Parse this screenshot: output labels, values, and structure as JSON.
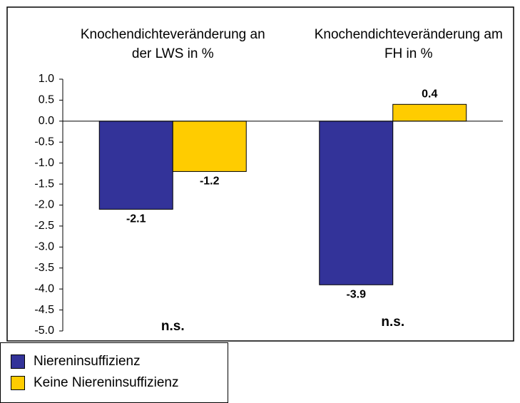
{
  "chart_data": {
    "type": "bar",
    "categories": [
      "Knochendichteveränderung an der LWS in %",
      "Knochendichteveränderung am FH in %"
    ],
    "series": [
      {
        "name": "Niereninsuffizienz",
        "color": "#333399",
        "values": [
          -2.1,
          -3.9
        ]
      },
      {
        "name": "Keine Niereninsuffizienz",
        "color": "#ffcc00",
        "values": [
          -1.2,
          0.4
        ]
      }
    ],
    "annotations": [
      "n.s.",
      "n.s."
    ],
    "ylim": [
      -5.0,
      1.0
    ],
    "yticks": [
      {
        "value": 1.0,
        "label": "1.0"
      },
      {
        "value": 0.5,
        "label": "0.5"
      },
      {
        "value": 0,
        "label": "0.0"
      },
      {
        "value": -0.5,
        "label": "-0.5"
      },
      {
        "value": -1.0,
        "label": "-1.0"
      },
      {
        "value": -1.5,
        "label": "-1.5"
      },
      {
        "value": -2.0,
        "label": "-2.0"
      },
      {
        "value": -2.5,
        "label": "-2.5"
      },
      {
        "value": -3.0,
        "label": "-3.0"
      },
      {
        "value": -3.5,
        "label": "-3.5"
      },
      {
        "value": -4.0,
        "label": "-4.0"
      },
      {
        "value": -4.5,
        "label": "-4.5"
      },
      {
        "value": -5.0,
        "label": "-5.0"
      }
    ],
    "grid": false,
    "legend": "bottom-left"
  }
}
